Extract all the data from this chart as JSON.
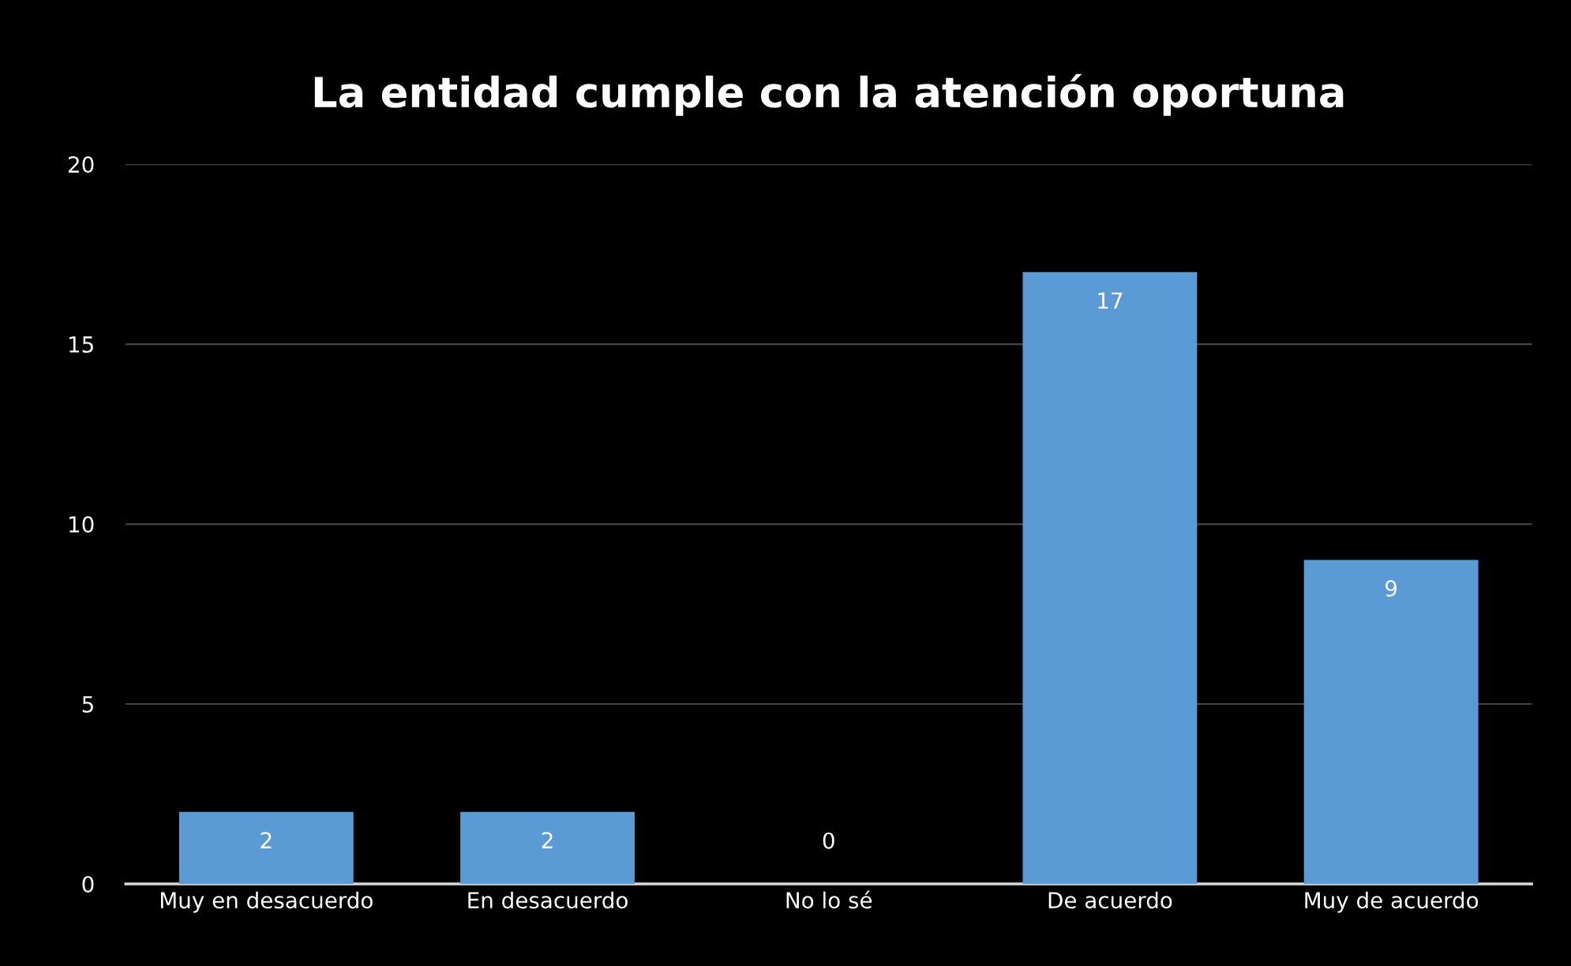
{
  "chart_data": {
    "type": "bar",
    "title": "La entidad cumple con la atención oportuna",
    "categories": [
      "Muy en desacuerdo",
      "En desacuerdo",
      "No lo sé",
      "De acuerdo",
      "Muy de acuerdo"
    ],
    "values": [
      2,
      2,
      0,
      17,
      9
    ],
    "color": "#5b9bd5",
    "ylim": [
      0,
      20
    ],
    "yticks": [
      0,
      5,
      10,
      15,
      20
    ],
    "grid": "y",
    "data_labels": true
  }
}
